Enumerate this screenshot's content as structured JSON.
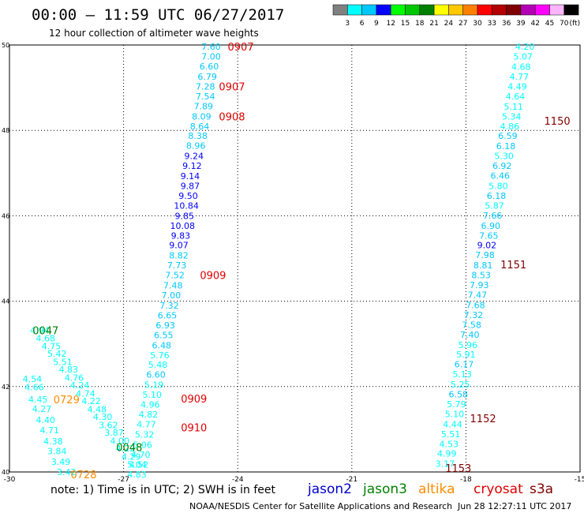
{
  "header": {
    "title": "00:00  –  11:59 UTC 06/27/2017",
    "subtitle": "12 hour collection of altimeter wave heights"
  },
  "colorbar": {
    "colors": [
      "#808080",
      "#00ffff",
      "#00c8ff",
      "#0000ff",
      "#00ff00",
      "#00c800",
      "#008000",
      "#ffff00",
      "#ffc800",
      "#ff8000",
      "#ff0000",
      "#b40000",
      "#800000",
      "#b400b4",
      "#ff00ff",
      "#ffb4ff",
      "#000000"
    ],
    "labels": [
      "3",
      "6",
      "9",
      "12",
      "15",
      "18",
      "21",
      "24",
      "27",
      "30",
      "33",
      "36",
      "39",
      "42",
      "45",
      "70"
    ],
    "unit": "(ft)"
  },
  "chart_data": {
    "type": "scatter",
    "xlim": [
      -30,
      -15
    ],
    "ylim": [
      40,
      50
    ],
    "x_ticks": [
      "-30",
      "-27",
      "-24",
      "-21",
      "-18",
      "-15"
    ],
    "y_ticks": [
      "40",
      "42",
      "44",
      "46",
      "48",
      "50"
    ],
    "grid": true,
    "value_colors": {
      "lt6": "#00ffff",
      "lt9": "#00c8ff",
      "lt12": "#0000ff"
    },
    "tracks": [
      {
        "name": "center",
        "mission": "jason2",
        "points": [
          {
            "lon": -24.7,
            "lat": 49.96,
            "swh": "7.60"
          },
          {
            "lon": -24.7,
            "lat": 49.73,
            "swh": "7.00"
          },
          {
            "lon": -24.75,
            "lat": 49.5,
            "swh": "6.60"
          },
          {
            "lon": -24.8,
            "lat": 49.26,
            "swh": "6.79"
          },
          {
            "lon": -24.85,
            "lat": 49.03,
            "swh": "7.28"
          },
          {
            "lon": -24.85,
            "lat": 48.8,
            "swh": "7.54"
          },
          {
            "lon": -24.9,
            "lat": 48.57,
            "swh": "7.89"
          },
          {
            "lon": -24.95,
            "lat": 48.33,
            "swh": "8.09"
          },
          {
            "lon": -25.0,
            "lat": 48.1,
            "swh": "8.64"
          },
          {
            "lon": -25.05,
            "lat": 47.87,
            "swh": "8.38"
          },
          {
            "lon": -25.1,
            "lat": 47.64,
            "swh": "8.96"
          },
          {
            "lon": -25.15,
            "lat": 47.4,
            "swh": "9.24"
          },
          {
            "lon": -25.2,
            "lat": 47.17,
            "swh": "9.12"
          },
          {
            "lon": -25.25,
            "lat": 46.93,
            "swh": "9.14"
          },
          {
            "lon": -25.25,
            "lat": 46.7,
            "swh": "9.87"
          },
          {
            "lon": -25.3,
            "lat": 46.47,
            "swh": "9.50"
          },
          {
            "lon": -25.35,
            "lat": 46.24,
            "swh": "10.84"
          },
          {
            "lon": -25.4,
            "lat": 46.0,
            "swh": "9.85"
          },
          {
            "lon": -25.45,
            "lat": 45.77,
            "swh": "10.08"
          },
          {
            "lon": -25.5,
            "lat": 45.54,
            "swh": "9.83"
          },
          {
            "lon": -25.55,
            "lat": 45.31,
            "swh": "9.07"
          },
          {
            "lon": -25.55,
            "lat": 45.07,
            "swh": "8.82"
          },
          {
            "lon": -25.6,
            "lat": 44.84,
            "swh": "7.73"
          },
          {
            "lon": -25.65,
            "lat": 44.61,
            "swh": "7.52"
          },
          {
            "lon": -25.7,
            "lat": 44.37,
            "swh": "7.48"
          },
          {
            "lon": -25.75,
            "lat": 44.14,
            "swh": "7.00"
          },
          {
            "lon": -25.8,
            "lat": 43.9,
            "swh": "7.32"
          },
          {
            "lon": -25.85,
            "lat": 43.67,
            "swh": "6.65"
          },
          {
            "lon": -25.9,
            "lat": 43.44,
            "swh": "6.93"
          },
          {
            "lon": -25.95,
            "lat": 43.21,
            "swh": "6.55"
          },
          {
            "lon": -26.0,
            "lat": 42.97,
            "swh": "6.48"
          },
          {
            "lon": -26.05,
            "lat": 42.74,
            "swh": "5.76"
          },
          {
            "lon": -26.1,
            "lat": 42.51,
            "swh": "5.48"
          },
          {
            "lon": -26.15,
            "lat": 42.28,
            "swh": "6.60"
          },
          {
            "lon": -26.2,
            "lat": 42.04,
            "swh": "5.19"
          },
          {
            "lon": -26.25,
            "lat": 41.81,
            "swh": "5.10"
          },
          {
            "lon": -26.3,
            "lat": 41.58,
            "swh": "4.96"
          },
          {
            "lon": -26.35,
            "lat": 41.35,
            "swh": "4.82"
          },
          {
            "lon": -26.4,
            "lat": 41.12,
            "swh": "4.77"
          },
          {
            "lon": -26.45,
            "lat": 40.88,
            "swh": "5.32"
          },
          {
            "lon": -26.5,
            "lat": 40.64,
            "swh": "5.06"
          },
          {
            "lon": -26.55,
            "lat": 40.41,
            "swh": "4.70"
          },
          {
            "lon": -26.6,
            "lat": 40.18,
            "swh": "4.52"
          },
          {
            "lon": -26.65,
            "lat": 39.94,
            "swh": "4.83"
          }
        ]
      },
      {
        "name": "right",
        "mission": "jason2",
        "points": [
          {
            "lon": -16.45,
            "lat": 49.96,
            "swh": "4.20"
          },
          {
            "lon": -16.5,
            "lat": 49.73,
            "swh": "5.07"
          },
          {
            "lon": -16.55,
            "lat": 49.49,
            "swh": "4.68"
          },
          {
            "lon": -16.6,
            "lat": 49.26,
            "swh": "4.77"
          },
          {
            "lon": -16.65,
            "lat": 49.03,
            "swh": "4.49"
          },
          {
            "lon": -16.7,
            "lat": 48.8,
            "swh": "4.64"
          },
          {
            "lon": -16.75,
            "lat": 48.56,
            "swh": "5.11"
          },
          {
            "lon": -16.8,
            "lat": 48.33,
            "swh": "5.34"
          },
          {
            "lon": -16.85,
            "lat": 48.1,
            "swh": "4.86"
          },
          {
            "lon": -16.9,
            "lat": 47.87,
            "swh": "6.59"
          },
          {
            "lon": -16.95,
            "lat": 47.63,
            "swh": "6.18"
          },
          {
            "lon": -17.0,
            "lat": 47.4,
            "swh": "5.30"
          },
          {
            "lon": -17.05,
            "lat": 47.17,
            "swh": "6.92"
          },
          {
            "lon": -17.1,
            "lat": 46.94,
            "swh": "6.46"
          },
          {
            "lon": -17.15,
            "lat": 46.7,
            "swh": "5.80"
          },
          {
            "lon": -17.2,
            "lat": 46.47,
            "swh": "6.18"
          },
          {
            "lon": -17.25,
            "lat": 46.24,
            "swh": "5.87"
          },
          {
            "lon": -17.3,
            "lat": 46.01,
            "swh": "7.66"
          },
          {
            "lon": -17.35,
            "lat": 45.77,
            "swh": "6.90"
          },
          {
            "lon": -17.4,
            "lat": 45.54,
            "swh": "7.65"
          },
          {
            "lon": -17.45,
            "lat": 45.31,
            "swh": "9.02"
          },
          {
            "lon": -17.5,
            "lat": 45.08,
            "swh": "7.98"
          },
          {
            "lon": -17.55,
            "lat": 44.84,
            "swh": "8.81"
          },
          {
            "lon": -17.6,
            "lat": 44.61,
            "swh": "8.53"
          },
          {
            "lon": -17.65,
            "lat": 44.38,
            "swh": "7.93"
          },
          {
            "lon": -17.7,
            "lat": 44.15,
            "swh": "7.47"
          },
          {
            "lon": -17.75,
            "lat": 43.91,
            "swh": "7.68"
          },
          {
            "lon": -17.8,
            "lat": 43.68,
            "swh": "7.32"
          },
          {
            "lon": -17.85,
            "lat": 43.45,
            "swh": "7.58"
          },
          {
            "lon": -17.9,
            "lat": 43.22,
            "swh": "7.40"
          },
          {
            "lon": -17.95,
            "lat": 42.98,
            "swh": "5.96"
          },
          {
            "lon": -18.0,
            "lat": 42.75,
            "swh": "5.91"
          },
          {
            "lon": -18.05,
            "lat": 42.52,
            "swh": "6.17"
          },
          {
            "lon": -18.1,
            "lat": 42.29,
            "swh": "5.13"
          },
          {
            "lon": -18.15,
            "lat": 42.05,
            "swh": "5.25"
          },
          {
            "lon": -18.2,
            "lat": 41.82,
            "swh": "6.58"
          },
          {
            "lon": -18.25,
            "lat": 41.59,
            "swh": "5.79"
          },
          {
            "lon": -18.3,
            "lat": 41.36,
            "swh": "5.10"
          },
          {
            "lon": -18.35,
            "lat": 41.12,
            "swh": "4.44"
          },
          {
            "lon": -18.4,
            "lat": 40.89,
            "swh": "5.51"
          },
          {
            "lon": -18.45,
            "lat": 40.66,
            "swh": "4.53"
          },
          {
            "lon": -18.5,
            "lat": 40.43,
            "swh": "4.99"
          },
          {
            "lon": -18.55,
            "lat": 40.19,
            "swh": "3.17"
          }
        ]
      },
      {
        "name": "left-a",
        "mission": "jason2",
        "points": [
          {
            "lon": -29.2,
            "lat": 43.32,
            "swh": "4.94"
          },
          {
            "lon": -29.05,
            "lat": 43.13,
            "swh": "4.68"
          },
          {
            "lon": -28.9,
            "lat": 42.95,
            "swh": "4.75"
          },
          {
            "lon": -28.75,
            "lat": 42.77,
            "swh": "5.42"
          },
          {
            "lon": -28.6,
            "lat": 42.58,
            "swh": "5.51"
          },
          {
            "lon": -28.45,
            "lat": 42.4,
            "swh": "4.83"
          },
          {
            "lon": -28.3,
            "lat": 42.21,
            "swh": "4.76"
          },
          {
            "lon": -28.15,
            "lat": 42.03,
            "swh": "4.24"
          },
          {
            "lon": -28.0,
            "lat": 41.84,
            "swh": "4.74"
          },
          {
            "lon": -27.85,
            "lat": 41.66,
            "swh": "4.22"
          },
          {
            "lon": -27.7,
            "lat": 41.47,
            "swh": "4.48"
          },
          {
            "lon": -27.55,
            "lat": 41.29,
            "swh": "4.30"
          },
          {
            "lon": -27.4,
            "lat": 41.1,
            "swh": "3.62"
          },
          {
            "lon": -27.25,
            "lat": 40.92,
            "swh": "3.87"
          },
          {
            "lon": -27.1,
            "lat": 40.73,
            "swh": "4.00"
          },
          {
            "lon": -26.95,
            "lat": 40.55,
            "swh": "4.22"
          },
          {
            "lon": -26.8,
            "lat": 40.36,
            "swh": "4.29"
          },
          {
            "lon": -26.65,
            "lat": 40.18,
            "swh": "5.04"
          }
        ]
      },
      {
        "name": "left-b",
        "mission": "jason2",
        "points": [
          {
            "lon": -29.4,
            "lat": 42.18,
            "swh": "4.54"
          },
          {
            "lon": -29.35,
            "lat": 41.99,
            "swh": "4.66"
          },
          {
            "lon": -29.25,
            "lat": 41.7,
            "swh": "4.45"
          },
          {
            "lon": -29.15,
            "lat": 41.48,
            "swh": "4.27"
          },
          {
            "lon": -29.05,
            "lat": 41.22,
            "swh": "4.40"
          },
          {
            "lon": -28.95,
            "lat": 40.98,
            "swh": "4.71"
          },
          {
            "lon": -28.85,
            "lat": 40.72,
            "swh": "4.38"
          },
          {
            "lon": -28.75,
            "lat": 40.49,
            "swh": "3.84"
          },
          {
            "lon": -28.65,
            "lat": 40.24,
            "swh": "3.49"
          },
          {
            "lon": -28.5,
            "lat": 40.0,
            "swh": "3.42"
          }
        ]
      }
    ],
    "time_labels": [
      {
        "text": "0907",
        "lon": -23.92,
        "lat": 49.96,
        "mission": "cryosat"
      },
      {
        "text": "0907",
        "lon": -24.15,
        "lat": 49.03,
        "mission": "cryosat"
      },
      {
        "text": "0908",
        "lon": -24.15,
        "lat": 48.33,
        "mission": "cryosat"
      },
      {
        "text": "1150",
        "lon": -15.6,
        "lat": 48.23,
        "mission": "s3a"
      },
      {
        "text": "0909",
        "lon": -24.65,
        "lat": 44.61,
        "mission": "cryosat"
      },
      {
        "text": "1151",
        "lon": -16.75,
        "lat": 44.86,
        "mission": "s3a"
      },
      {
        "text": "0047",
        "lon": -29.05,
        "lat": 43.32,
        "mission": "jason3"
      },
      {
        "text": "0729",
        "lon": -28.5,
        "lat": 41.7,
        "mission": "altika"
      },
      {
        "text": "0909",
        "lon": -25.15,
        "lat": 41.72,
        "mission": "cryosat"
      },
      {
        "text": "0910",
        "lon": -25.15,
        "lat": 41.04,
        "mission": "cryosat"
      },
      {
        "text": "1152",
        "lon": -17.55,
        "lat": 41.26,
        "mission": "s3a"
      },
      {
        "text": "0048",
        "lon": -26.85,
        "lat": 40.58,
        "mission": "jason3"
      },
      {
        "text": "0728",
        "lon": -28.05,
        "lat": 39.94,
        "mission": "altika"
      },
      {
        "text": "1153",
        "lon": -18.2,
        "lat": 40.09,
        "mission": "s3a"
      }
    ]
  },
  "legend": {
    "note": "note:  1) Time is in UTC;  2) SWH is in feet",
    "missions": [
      {
        "key": "jason2",
        "label": "jason2",
        "color": "#0000cc"
      },
      {
        "key": "jason3",
        "label": "jason3",
        "color": "#008000"
      },
      {
        "key": "altika",
        "label": "altika",
        "color": "#ff8c00"
      },
      {
        "key": "cryosat",
        "label": "cryosat",
        "color": "#e00000"
      },
      {
        "key": "s3a",
        "label": "s3a",
        "color": "#800000"
      }
    ]
  },
  "footer": {
    "credit": "NOAA/NESDIS Center for Satellite Applications and Research",
    "timestamp": "Jun 28 12:27:11 UTC 2017"
  }
}
